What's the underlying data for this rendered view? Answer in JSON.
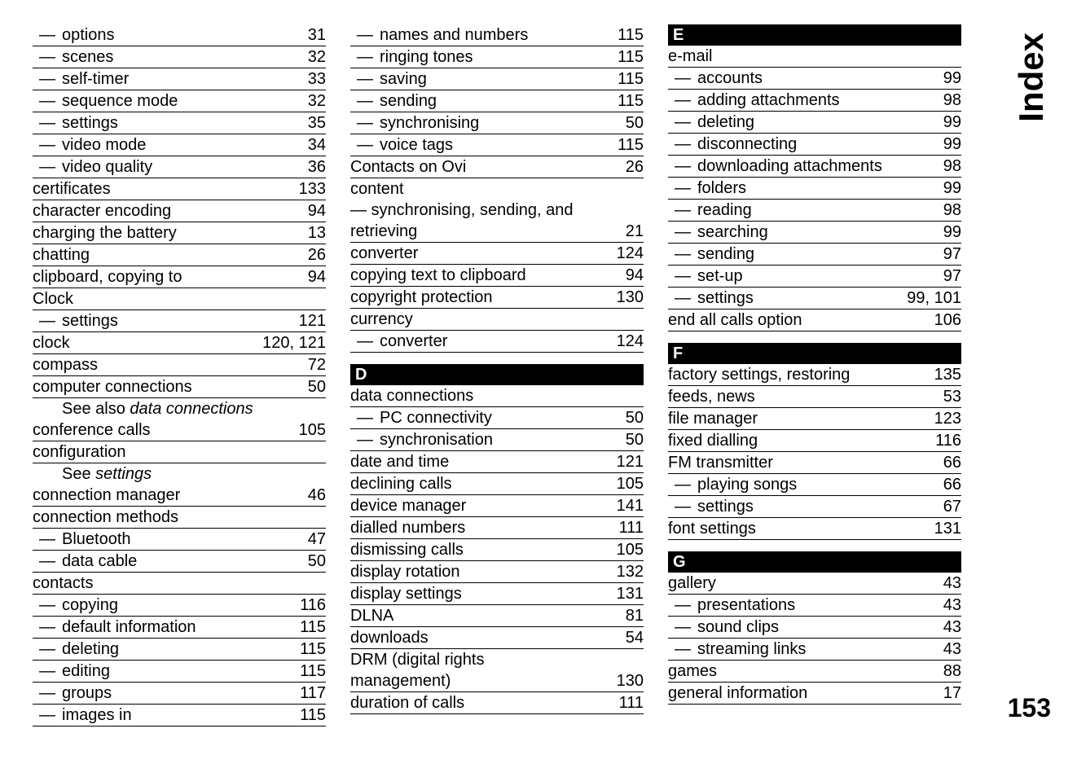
{
  "side_title": "Index",
  "page_number": "153",
  "columns": [
    [
      {
        "type": "sub",
        "term": "options",
        "pages": "31"
      },
      {
        "type": "sub",
        "term": "scenes",
        "pages": "32"
      },
      {
        "type": "sub",
        "term": "self-timer",
        "pages": "33"
      },
      {
        "type": "sub",
        "term": "sequence mode",
        "pages": "32"
      },
      {
        "type": "sub",
        "term": "settings",
        "pages": "35"
      },
      {
        "type": "sub",
        "term": "video mode",
        "pages": "34"
      },
      {
        "type": "sub",
        "term": "video quality",
        "pages": "36"
      },
      {
        "type": "main",
        "term": "certificates",
        "pages": "133"
      },
      {
        "type": "main",
        "term": "character encoding",
        "pages": "94"
      },
      {
        "type": "main",
        "term": "charging the battery",
        "pages": "13"
      },
      {
        "type": "main",
        "term": "chatting",
        "pages": "26"
      },
      {
        "type": "main",
        "term": "clipboard, copying to",
        "pages": "94"
      },
      {
        "type": "main",
        "term": "Clock",
        "pages": ""
      },
      {
        "type": "sub",
        "term": "settings",
        "pages": "121"
      },
      {
        "type": "main",
        "term": "clock",
        "pages": "120, 121"
      },
      {
        "type": "main",
        "term": "compass",
        "pages": "72"
      },
      {
        "type": "main",
        "term": "computer connections",
        "pages": "50"
      },
      {
        "type": "see",
        "prefix": "See also ",
        "term": "data connections"
      },
      {
        "type": "main",
        "term": "conference calls",
        "pages": "105"
      },
      {
        "type": "main",
        "term": "configuration",
        "pages": ""
      },
      {
        "type": "see",
        "prefix": "See ",
        "term": "settings"
      },
      {
        "type": "main",
        "term": "connection manager",
        "pages": "46"
      },
      {
        "type": "main",
        "term": "connection methods",
        "pages": ""
      },
      {
        "type": "sub",
        "term": "Bluetooth",
        "pages": "47"
      },
      {
        "type": "sub",
        "term": "data cable",
        "pages": "50"
      },
      {
        "type": "main",
        "term": "contacts",
        "pages": ""
      },
      {
        "type": "sub",
        "term": "copying",
        "pages": "116"
      },
      {
        "type": "sub",
        "term": "default information",
        "pages": "115"
      },
      {
        "type": "sub",
        "term": "deleting",
        "pages": "115"
      },
      {
        "type": "sub",
        "term": "editing",
        "pages": "115"
      },
      {
        "type": "sub",
        "term": "groups",
        "pages": "117"
      },
      {
        "type": "sub",
        "term": "images in",
        "pages": "115"
      }
    ],
    [
      {
        "type": "sub",
        "term": "names and numbers",
        "pages": "115"
      },
      {
        "type": "sub",
        "term": "ringing tones",
        "pages": "115"
      },
      {
        "type": "sub",
        "term": "saving",
        "pages": "115"
      },
      {
        "type": "sub",
        "term": "sending",
        "pages": "115"
      },
      {
        "type": "sub",
        "term": "synchronising",
        "pages": "50"
      },
      {
        "type": "sub",
        "term": "voice tags",
        "pages": "115"
      },
      {
        "type": "main",
        "term": "Contacts on Ovi",
        "pages": "26"
      },
      {
        "type": "main",
        "term": "content",
        "pages": "",
        "noborder": true
      },
      {
        "type": "cont",
        "term": "— synchronising, sending, and",
        "noborder": true
      },
      {
        "type": "main",
        "term": "retrieving",
        "pages": "21"
      },
      {
        "type": "main",
        "term": "converter",
        "pages": "124"
      },
      {
        "type": "main",
        "term": "copying text to clipboard",
        "pages": "94"
      },
      {
        "type": "main",
        "term": "copyright protection",
        "pages": "130"
      },
      {
        "type": "main",
        "term": "currency",
        "pages": ""
      },
      {
        "type": "sub",
        "term": "converter",
        "pages": "124"
      },
      {
        "type": "header",
        "label": "D"
      },
      {
        "type": "main",
        "term": "data connections",
        "pages": ""
      },
      {
        "type": "sub",
        "term": "PC connectivity",
        "pages": "50"
      },
      {
        "type": "sub",
        "term": "synchronisation",
        "pages": "50"
      },
      {
        "type": "main",
        "term": "date and time",
        "pages": "121"
      },
      {
        "type": "main",
        "term": "declining calls",
        "pages": "105"
      },
      {
        "type": "main",
        "term": "device manager",
        "pages": "141"
      },
      {
        "type": "main",
        "term": "dialled numbers",
        "pages": "111"
      },
      {
        "type": "main",
        "term": "dismissing calls",
        "pages": "105"
      },
      {
        "type": "main",
        "term": "display rotation",
        "pages": "132"
      },
      {
        "type": "main",
        "term": "display settings",
        "pages": "131"
      },
      {
        "type": "main",
        "term": "DLNA",
        "pages": "81"
      },
      {
        "type": "main",
        "term": "downloads",
        "pages": "54"
      },
      {
        "type": "main",
        "term": "DRM (digital rights",
        "pages": "",
        "noborder": true
      },
      {
        "type": "main",
        "term": "management)",
        "pages": "130"
      },
      {
        "type": "main",
        "term": "duration of calls",
        "pages": "111"
      }
    ],
    [
      {
        "type": "header",
        "label": "E",
        "first": true
      },
      {
        "type": "main",
        "term": "e-mail",
        "pages": ""
      },
      {
        "type": "sub",
        "term": "accounts",
        "pages": "99"
      },
      {
        "type": "sub",
        "term": "adding attachments",
        "pages": "98"
      },
      {
        "type": "sub",
        "term": "deleting",
        "pages": "99"
      },
      {
        "type": "sub",
        "term": "disconnecting",
        "pages": "99"
      },
      {
        "type": "sub",
        "term": "downloading attachments",
        "pages": "98"
      },
      {
        "type": "sub",
        "term": "folders",
        "pages": "99"
      },
      {
        "type": "sub",
        "term": "reading",
        "pages": "98"
      },
      {
        "type": "sub",
        "term": "searching",
        "pages": "99"
      },
      {
        "type": "sub",
        "term": "sending",
        "pages": "97"
      },
      {
        "type": "sub",
        "term": "set-up",
        "pages": "97"
      },
      {
        "type": "sub",
        "term": "settings",
        "pages": "99, 101"
      },
      {
        "type": "main",
        "term": "end all calls option",
        "pages": "106"
      },
      {
        "type": "header",
        "label": "F"
      },
      {
        "type": "main",
        "term": "factory settings, restoring",
        "pages": "135"
      },
      {
        "type": "main",
        "term": "feeds, news",
        "pages": "53"
      },
      {
        "type": "main",
        "term": "file manager",
        "pages": "123"
      },
      {
        "type": "main",
        "term": "fixed dialling",
        "pages": "116"
      },
      {
        "type": "main",
        "term": "FM transmitter",
        "pages": "66"
      },
      {
        "type": "sub",
        "term": "playing songs",
        "pages": "66"
      },
      {
        "type": "sub",
        "term": "settings",
        "pages": "67"
      },
      {
        "type": "main",
        "term": "font settings",
        "pages": "131"
      },
      {
        "type": "header",
        "label": "G"
      },
      {
        "type": "main",
        "term": "gallery",
        "pages": "43"
      },
      {
        "type": "sub",
        "term": "presentations",
        "pages": "43"
      },
      {
        "type": "sub",
        "term": "sound clips",
        "pages": "43"
      },
      {
        "type": "sub",
        "term": "streaming links",
        "pages": "43"
      },
      {
        "type": "main",
        "term": "games",
        "pages": "88"
      },
      {
        "type": "main",
        "term": "general information",
        "pages": "17"
      }
    ]
  ]
}
